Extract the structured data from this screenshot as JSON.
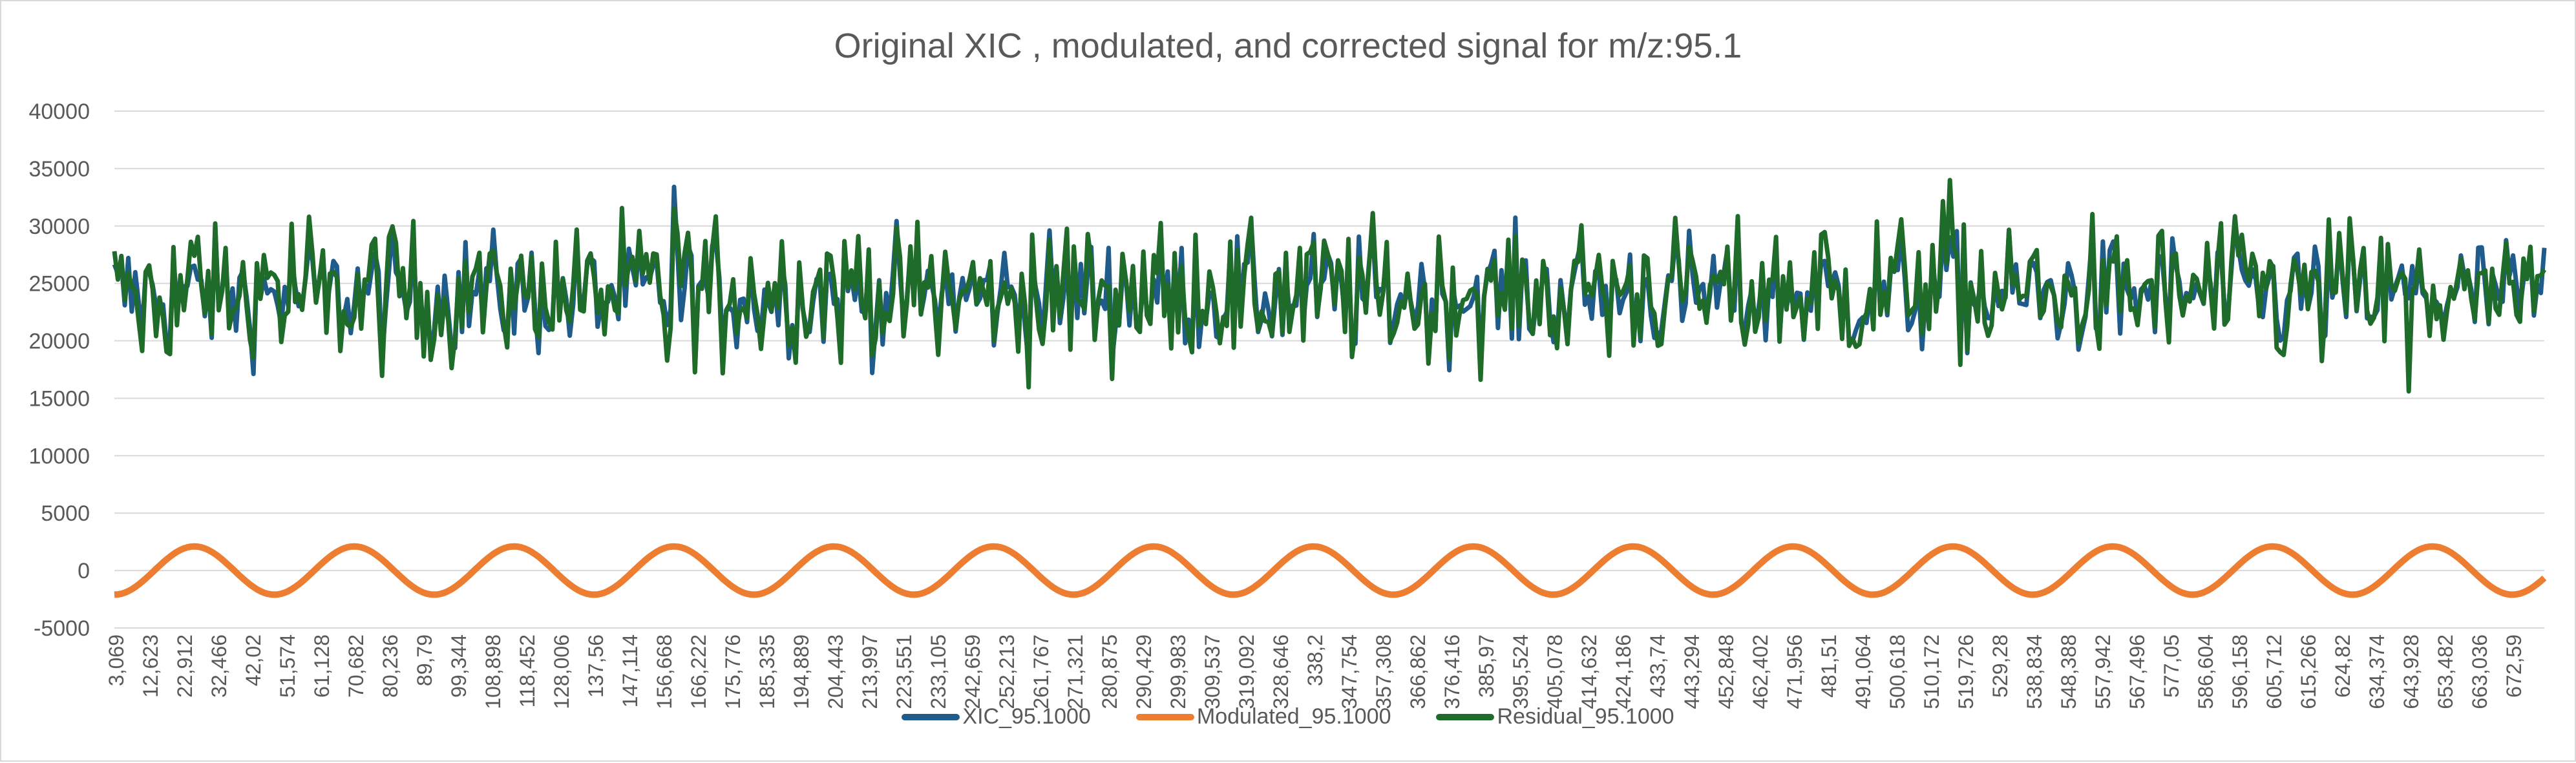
{
  "chart_data": {
    "type": "line",
    "title": "Original XIC , modulated, and corrected signal for m/z:95.1",
    "xlabel": "",
    "ylabel": "",
    "ylim": [
      -5000,
      40000
    ],
    "yticks": [
      40000,
      35000,
      30000,
      25000,
      20000,
      15000,
      10000,
      5000,
      0,
      -5000
    ],
    "grid": true,
    "legend_position": "bottom",
    "x_tick_labels": [
      "3,069",
      "12,623",
      "22,912",
      "32,466",
      "42,02",
      "51,574",
      "61,128",
      "70,682",
      "80,236",
      "89,79",
      "99,344",
      "108,898",
      "118,452",
      "128,006",
      "137,56",
      "147,114",
      "156,668",
      "166,222",
      "175,776",
      "185,335",
      "194,889",
      "204,443",
      "213,997",
      "223,551",
      "233,105",
      "242,659",
      "252,213",
      "261,767",
      "271,321",
      "280,875",
      "290,429",
      "299,983",
      "309,537",
      "319,092",
      "328,646",
      "338,2",
      "347,754",
      "357,308",
      "366,862",
      "376,416",
      "385,97",
      "395,524",
      "405,078",
      "414,632",
      "424,186",
      "433,74",
      "443,294",
      "452,848",
      "462,402",
      "471,956",
      "481,51",
      "491,064",
      "500,618",
      "510,172",
      "519,726",
      "529,28",
      "538,834",
      "548,388",
      "557,942",
      "567,496",
      "577,05",
      "586,604",
      "596,158",
      "605,712",
      "615,266",
      "624,82",
      "634,374",
      "643,928",
      "653,482",
      "663,036",
      "672,59"
    ],
    "x_range": [
      3.069,
      682.0
    ],
    "series": [
      {
        "name": "XIC_95.1000",
        "color": "#1f5c8b",
        "kind": "noisy",
        "mean": 24000,
        "amplitude": 2600,
        "min": 16800,
        "max": 33400
      },
      {
        "name": "Modulated_95.1000",
        "color": "#ed7d31",
        "kind": "sine",
        "amplitude": 2100,
        "periods": 15.2,
        "phase_deg": -90
      },
      {
        "name": "Residual_95.1000",
        "color": "#1e6b2a",
        "kind": "noisy",
        "mean": 24200,
        "amplitude": 2900,
        "min": 15600,
        "max": 34000
      }
    ]
  }
}
